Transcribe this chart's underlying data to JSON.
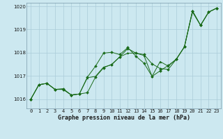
{
  "xlabel": "Graphe pression niveau de la mer (hPa)",
  "x_ticks": [
    0,
    1,
    2,
    3,
    4,
    5,
    6,
    7,
    8,
    9,
    10,
    11,
    12,
    13,
    14,
    15,
    16,
    17,
    18,
    19,
    20,
    21,
    22,
    23
  ],
  "ylim": [
    1015.6,
    1020.15
  ],
  "yticks": [
    1016,
    1017,
    1018,
    1019,
    1020
  ],
  "background_color": "#cce8f0",
  "grid_color": "#aaccd8",
  "line_color": "#1a6b1a",
  "line1_x": [
    0,
    1,
    2,
    3,
    4,
    5,
    6,
    7,
    8,
    9,
    10,
    11,
    12,
    13,
    14,
    15,
    16,
    17,
    18,
    19,
    20,
    21,
    22,
    23
  ],
  "line1_y": [
    1016.0,
    1016.62,
    1016.68,
    1016.42,
    1016.42,
    1016.18,
    1016.22,
    1016.28,
    1016.95,
    1017.35,
    1017.5,
    1017.82,
    1018.18,
    1017.98,
    1017.92,
    1017.52,
    1017.32,
    1017.28,
    1017.72,
    1018.25,
    1019.8,
    1019.18,
    1019.75,
    1019.92
  ],
  "line2_x": [
    0,
    1,
    2,
    3,
    4,
    5,
    6,
    7,
    8,
    9,
    10,
    11,
    12,
    13,
    14,
    15,
    16,
    17,
    18,
    19,
    20,
    21,
    22,
    23
  ],
  "line2_y": [
    1016.0,
    1016.62,
    1016.68,
    1016.42,
    1016.45,
    1016.18,
    1016.22,
    1016.95,
    1017.42,
    1017.98,
    1018.02,
    1017.92,
    1018.22,
    1017.85,
    1017.55,
    1016.98,
    1017.22,
    1017.45,
    1017.72,
    1018.25,
    1019.8,
    1019.18,
    1019.75,
    1019.92
  ],
  "line3_x": [
    0,
    1,
    2,
    3,
    4,
    5,
    6,
    7,
    8,
    9,
    10,
    11,
    12,
    13,
    14,
    15,
    16,
    17,
    18,
    19,
    20,
    21,
    22,
    23
  ],
  "line3_y": [
    1016.0,
    1016.62,
    1016.68,
    1016.42,
    1016.42,
    1016.18,
    1016.22,
    1016.92,
    1016.98,
    1017.38,
    1017.48,
    1017.82,
    1017.98,
    1017.98,
    1017.88,
    1016.98,
    1017.62,
    1017.42,
    1017.72,
    1018.25,
    1019.75,
    1019.18,
    1019.75,
    1019.92
  ],
  "tick_fontsize": 5.0,
  "xlabel_fontsize": 6.0
}
